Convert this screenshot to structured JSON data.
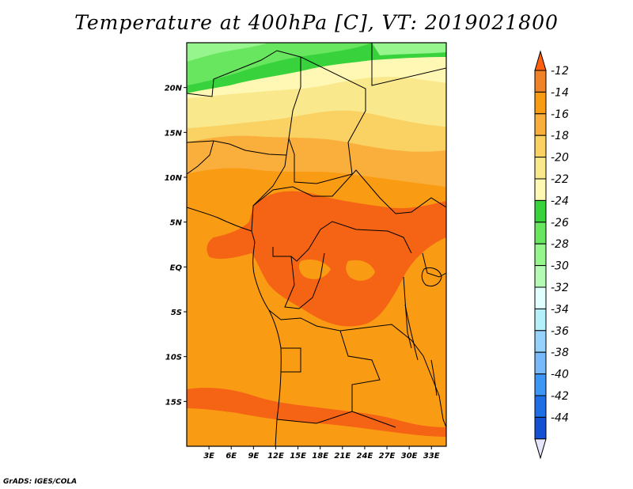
{
  "title": "Temperature at 400hPa [C], VT: 2019021800",
  "credit": "GrADS: IGES/COLA",
  "map": {
    "projection": "latlon",
    "lon_range": [
      0,
      35
    ],
    "lat_range": [
      -20,
      25
    ],
    "lat_ticks": [
      {
        "value": 20,
        "label": "20N"
      },
      {
        "value": 15,
        "label": "15N"
      },
      {
        "value": 10,
        "label": "10N"
      },
      {
        "value": 5,
        "label": "5N"
      },
      {
        "value": 0,
        "label": "EQ"
      },
      {
        "value": -5,
        "label": "5S"
      },
      {
        "value": -10,
        "label": "10S"
      },
      {
        "value": -15,
        "label": "15S"
      }
    ],
    "lon_ticks": [
      {
        "value": 3,
        "label": "3E"
      },
      {
        "value": 6,
        "label": "6E"
      },
      {
        "value": 9,
        "label": "9E"
      },
      {
        "value": 12,
        "label": "12E"
      },
      {
        "value": 15,
        "label": "15E"
      },
      {
        "value": 18,
        "label": "18E"
      },
      {
        "value": 21,
        "label": "21E"
      },
      {
        "value": 24,
        "label": "24E"
      },
      {
        "value": 27,
        "label": "27E"
      },
      {
        "value": 30,
        "label": "30E"
      },
      {
        "value": 33,
        "label": "33E"
      }
    ]
  },
  "colorbar": {
    "levels": [
      {
        "label": "-12",
        "color": "#f08228"
      },
      {
        "label": "-14",
        "color": "#fa9b14"
      },
      {
        "label": "-16",
        "color": "#faaf3c"
      },
      {
        "label": "-18",
        "color": "#fad264"
      },
      {
        "label": "-20",
        "color": "#fae88c"
      },
      {
        "label": "-22",
        "color": "#fff8b4"
      },
      {
        "label": "-24",
        "color": "#37d23c"
      },
      {
        "label": "-26",
        "color": "#69e65f"
      },
      {
        "label": "-28",
        "color": "#96f58c"
      },
      {
        "label": "-30",
        "color": "#b4fab4"
      },
      {
        "label": "-32",
        "color": "#e1ffff"
      },
      {
        "label": "-34",
        "color": "#b4f0fa"
      },
      {
        "label": "-36",
        "color": "#96d2fa"
      },
      {
        "label": "-38",
        "color": "#78b9fa"
      },
      {
        "label": "-40",
        "color": "#3c96f5"
      },
      {
        "label": "-42",
        "color": "#1e6ee6"
      },
      {
        "label": "-44",
        "color": "#1450d2"
      }
    ],
    "top_color": "#ff5f0f",
    "bottom_color": "#000a78",
    "below_min_color": "#e6e6fa"
  },
  "fields": {
    "land_palette": {
      "t12": "#f56414",
      "t14": "#fa9b14",
      "t16": "#faaf3c",
      "t18": "#fad264",
      "t20": "#fae88c",
      "t22": "#fff8b4",
      "g24": "#37d23c",
      "g26": "#69e65f",
      "g28": "#96f58c"
    }
  }
}
